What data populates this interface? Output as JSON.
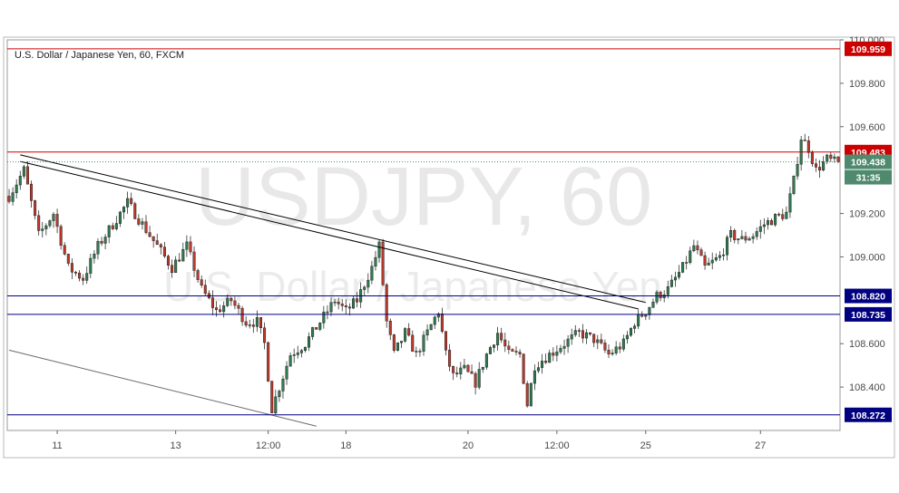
{
  "header": {
    "title": "U.S. Dollar / Japanese Yen, 60, FXCM"
  },
  "watermark": {
    "symbol": "USDJPY, 60",
    "description": "U.S. Dollar / Japanese Yen"
  },
  "current": {
    "price": "109.438",
    "countdown": "31:35"
  },
  "colors": {
    "up": "#2e7d4f",
    "down": "#c0392b",
    "resistance": "#cc0000",
    "support": "#000080",
    "trend": "#000000",
    "current": "#4f8a6e"
  },
  "chart_data": {
    "type": "candlestick",
    "title": "U.S. Dollar / Japanese Yen, 60, FXCM",
    "xlabel": "",
    "ylabel": "",
    "ylim": [
      108.2,
      110.0
    ],
    "y_ticks": [
      "110.000",
      "109.800",
      "109.600",
      "109.200",
      "109.000",
      "108.600",
      "108.400"
    ],
    "x_ticks": [
      {
        "label": "11",
        "bar": 13
      },
      {
        "label": "13",
        "bar": 45
      },
      {
        "label": "12:00",
        "bar": 70
      },
      {
        "label": "18",
        "bar": 91
      },
      {
        "label": "20",
        "bar": 124
      },
      {
        "label": "12:00",
        "bar": 148
      },
      {
        "label": "25",
        "bar": 172
      },
      {
        "label": "27",
        "bar": 203
      }
    ],
    "horizontal_levels": [
      {
        "value": 109.959,
        "label": "109.959",
        "kind": "resistance"
      },
      {
        "value": 109.483,
        "label": "109.483",
        "kind": "resistance"
      },
      {
        "value": 108.82,
        "label": "108.820",
        "kind": "support"
      },
      {
        "value": 108.735,
        "label": "108.735",
        "kind": "support"
      },
      {
        "value": 108.272,
        "label": "108.272",
        "kind": "support"
      }
    ],
    "trendlines": [
      {
        "from": {
          "bar": 3,
          "price": 109.47
        },
        "to": {
          "bar": 172,
          "price": 108.79
        }
      },
      {
        "from": {
          "bar": 3,
          "price": 109.44
        },
        "to": {
          "bar": 170,
          "price": 108.76
        }
      },
      {
        "from": {
          "bar": 0,
          "price": 108.57
        },
        "to": {
          "bar": 83,
          "price": 108.22
        }
      }
    ],
    "anchors": [
      [
        0,
        109.28
      ],
      [
        4,
        109.4
      ],
      [
        8,
        109.1
      ],
      [
        12,
        109.2
      ],
      [
        16,
        108.95
      ],
      [
        20,
        108.9
      ],
      [
        24,
        109.05
      ],
      [
        28,
        109.15
      ],
      [
        32,
        109.25
      ],
      [
        36,
        109.15
      ],
      [
        40,
        109.05
      ],
      [
        44,
        108.95
      ],
      [
        48,
        109.05
      ],
      [
        52,
        108.85
      ],
      [
        56,
        108.75
      ],
      [
        60,
        108.8
      ],
      [
        64,
        108.7
      ],
      [
        67,
        108.7
      ],
      [
        69,
        108.6
      ],
      [
        71,
        108.3
      ],
      [
        73,
        108.4
      ],
      [
        76,
        108.55
      ],
      [
        80,
        108.6
      ],
      [
        84,
        108.7
      ],
      [
        88,
        108.8
      ],
      [
        91,
        108.75
      ],
      [
        94,
        108.8
      ],
      [
        98,
        108.95
      ],
      [
        100,
        109.05
      ],
      [
        102,
        108.7
      ],
      [
        104,
        108.55
      ],
      [
        107,
        108.65
      ],
      [
        110,
        108.55
      ],
      [
        113,
        108.65
      ],
      [
        116,
        108.75
      ],
      [
        118,
        108.55
      ],
      [
        120,
        108.45
      ],
      [
        123,
        108.48
      ],
      [
        126,
        108.42
      ],
      [
        129,
        108.55
      ],
      [
        132,
        108.65
      ],
      [
        135,
        108.55
      ],
      [
        138,
        108.55
      ],
      [
        140,
        108.32
      ],
      [
        142,
        108.5
      ],
      [
        146,
        108.55
      ],
      [
        150,
        108.6
      ],
      [
        154,
        108.65
      ],
      [
        158,
        108.62
      ],
      [
        162,
        108.55
      ],
      [
        166,
        108.6
      ],
      [
        169,
        108.7
      ],
      [
        172,
        108.75
      ],
      [
        175,
        108.82
      ],
      [
        178,
        108.85
      ],
      [
        182,
        108.95
      ],
      [
        185,
        109.05
      ],
      [
        188,
        108.95
      ],
      [
        192,
        109.0
      ],
      [
        195,
        109.1
      ],
      [
        198,
        109.08
      ],
      [
        201,
        109.1
      ],
      [
        204,
        109.15
      ],
      [
        207,
        109.18
      ],
      [
        210,
        109.2
      ],
      [
        212,
        109.35
      ],
      [
        214,
        109.55
      ],
      [
        216,
        109.5
      ],
      [
        218,
        109.4
      ],
      [
        221,
        109.45
      ],
      [
        224,
        109.43
      ]
    ]
  }
}
